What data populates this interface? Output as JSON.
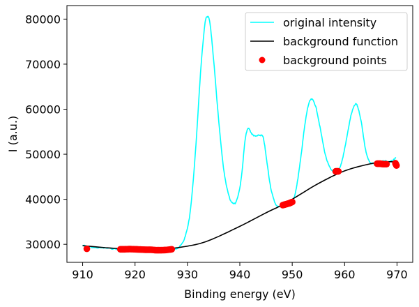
{
  "chart_data": {
    "type": "line",
    "title": "",
    "xlabel": "Binding energy (eV)",
    "ylabel": "I (a.u.)",
    "xlim": [
      907,
      973
    ],
    "ylim": [
      26000,
      83000
    ],
    "x_ticks": [
      910,
      920,
      930,
      940,
      950,
      960,
      970
    ],
    "y_ticks": [
      30000,
      40000,
      50000,
      60000,
      70000,
      80000
    ],
    "grid": false,
    "legend_position": "upper right",
    "legend": [
      "original intensity",
      "background function",
      "background points"
    ],
    "series": [
      {
        "name": "original intensity",
        "type": "line",
        "color": "#00ffff",
        "x": [
          910,
          912,
          914,
          916,
          918,
          920,
          922,
          924,
          926,
          927.5,
          928.5,
          929.5,
          930.5,
          931.5,
          932.5,
          933.3,
          933.8,
          934.3,
          935,
          936,
          937,
          938,
          938.6,
          939.3,
          940.2,
          941,
          941.6,
          942.3,
          943,
          943.8,
          944.5,
          945.2,
          946,
          947,
          948,
          949,
          950,
          950.7,
          951.5,
          952.3,
          953,
          953.7,
          954.5,
          955.3,
          956.3,
          957.2,
          958,
          958.8,
          959.5,
          960.3,
          961.2,
          962,
          962.5,
          963.2,
          964,
          964.8,
          965.5,
          966.5,
          967.5,
          968.5,
          969.3,
          969.8
        ],
        "y": [
          29800,
          29300,
          29200,
          29000,
          28900,
          28900,
          28800,
          28700,
          28800,
          29000,
          29500,
          31500,
          37000,
          50000,
          68000,
          78500,
          80500,
          79000,
          71000,
          57000,
          46000,
          40500,
          39300,
          39500,
          44000,
          53000,
          55700,
          54500,
          54000,
          54200,
          53500,
          48000,
          42000,
          38600,
          38700,
          39000,
          39500,
          42000,
          48000,
          55500,
          60500,
          62200,
          60500,
          56000,
          50000,
          47000,
          46200,
          46500,
          48500,
          53000,
          58500,
          61000,
          60500,
          57000,
          51000,
          48200,
          48000,
          48000,
          48500,
          48300,
          48800,
          49200
        ]
      },
      {
        "name": "background function",
        "type": "line",
        "color": "#000000",
        "x": [
          910,
          915,
          920,
          925,
          930,
          934,
          940,
          945,
          947.5,
          950,
          955,
          960,
          965,
          968,
          970
        ],
        "y": [
          29700,
          29200,
          28900,
          28900,
          29600,
          30800,
          34000,
          37000,
          38400,
          40000,
          43500,
          46300,
          47900,
          48300,
          48300
        ]
      },
      {
        "name": "background points",
        "type": "scatter",
        "color": "#ff0000",
        "x": [
          910.8,
          917.2,
          918,
          919,
          920,
          921,
          922,
          923,
          924,
          925,
          926,
          927,
          948.2,
          948.8,
          949.4,
          950,
          958.3,
          958.8,
          966.2,
          966.8,
          967.4,
          968,
          969.7,
          969.9
        ],
        "y": [
          29000,
          28900,
          28900,
          28950,
          28900,
          28850,
          28800,
          28800,
          28700,
          28700,
          28750,
          28900,
          38700,
          38900,
          39100,
          39400,
          46200,
          46200,
          47900,
          47900,
          47800,
          47800,
          48000,
          47500
        ]
      }
    ]
  }
}
